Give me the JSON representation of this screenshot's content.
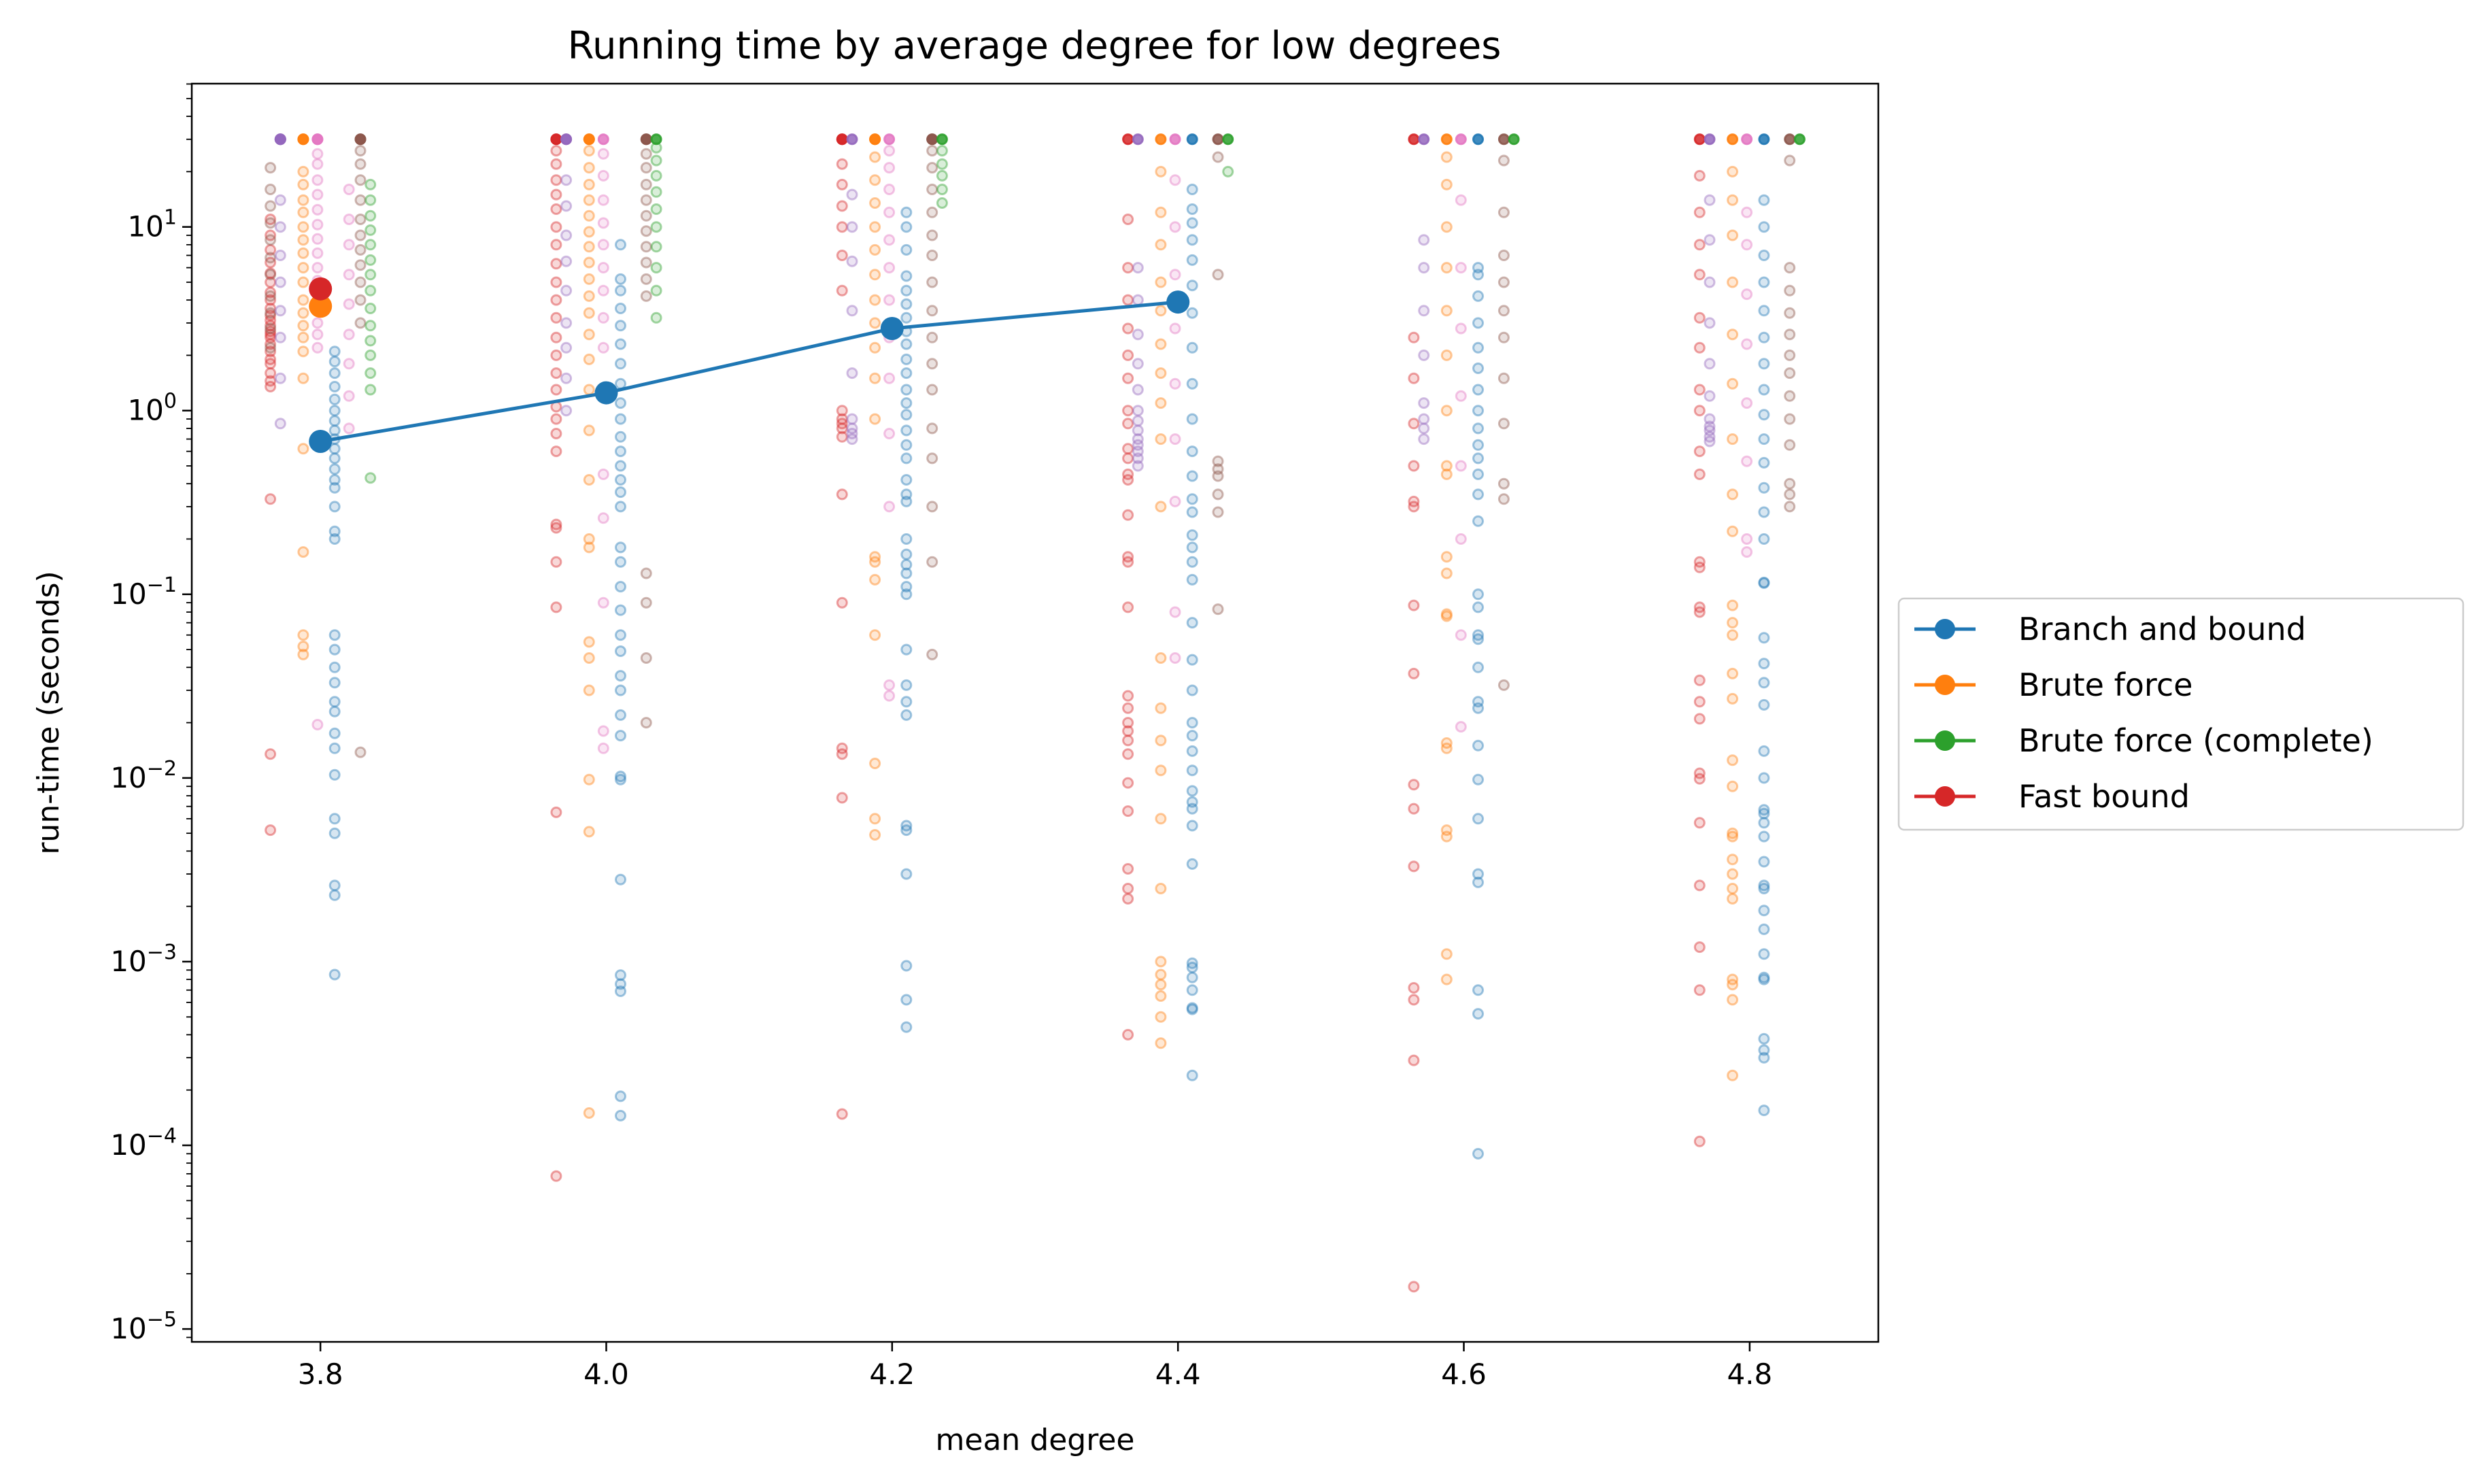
{
  "chart_data": {
    "type": "scatter",
    "title": "Running time by average degree for low degrees",
    "xlabel": "mean degree",
    "ylabel": "run-time (seconds)",
    "xlim": [
      3.71,
      4.89
    ],
    "ylim_exp": [
      -5.07,
      1.78
    ],
    "y_scale": "log",
    "grid": false,
    "legend_placement": "center-right, outside plot",
    "x_ticks": [
      {
        "value": 3.8,
        "label": "3.8"
      },
      {
        "value": 4.0,
        "label": "4.0"
      },
      {
        "value": 4.2,
        "label": "4.2"
      },
      {
        "value": 4.4,
        "label": "4.4"
      },
      {
        "value": 4.6,
        "label": "4.6"
      },
      {
        "value": 4.8,
        "label": "4.8"
      }
    ],
    "y_ticks": [
      {
        "exp": 1,
        "label": "10",
        "sup": "1"
      },
      {
        "exp": 0,
        "label": "10",
        "sup": "0"
      },
      {
        "exp": -1,
        "label": "10",
        "sup": "−1"
      },
      {
        "exp": -2,
        "label": "10",
        "sup": "−2"
      },
      {
        "exp": -3,
        "label": "10",
        "sup": "−3"
      },
      {
        "exp": -4,
        "label": "10",
        "sup": "−4"
      },
      {
        "exp": -5,
        "label": "10",
        "sup": "−5"
      }
    ],
    "series": [
      {
        "name": "Branch and bound",
        "color": "#1f77b4",
        "x": [
          3.8,
          4.0,
          4.2,
          4.4
        ],
        "y": [
          0.68,
          1.25,
          2.8,
          3.9
        ]
      },
      {
        "name": "Brute force",
        "color": "#ff7f0e",
        "x": [
          3.8
        ],
        "y": [
          3.7
        ]
      },
      {
        "name": "Brute force (complete)",
        "color": "#2ca02c",
        "x": [],
        "y": []
      },
      {
        "name": "Fast bound",
        "color": "#d62728",
        "x": [
          3.8
        ],
        "y": [
          4.6
        ]
      }
    ],
    "scatter_groups": [
      {
        "color": "#d62728",
        "x": 3.765,
        "y": [
          0.0052,
          0.0135,
          0.33,
          1.35,
          1.45,
          1.6,
          1.8,
          1.9,
          2.1,
          2.3,
          2.5,
          2.6,
          2.7,
          2.9,
          3.1,
          3.3,
          3.6,
          4.0,
          4.4,
          5.0,
          5.6,
          6.4,
          7.5,
          9.0,
          11.0
        ]
      },
      {
        "color": "#8c564b",
        "x": 3.765,
        "y": [
          2.2,
          2.8,
          3.4,
          4.2,
          5.5,
          6.8,
          8.5,
          10.5,
          13.0,
          16.0,
          21.0
        ]
      },
      {
        "color": "#9467bd",
        "x": 3.772,
        "y": [
          0.85,
          1.5,
          2.5,
          3.5,
          5.0,
          7.0,
          10.0,
          14.0,
          30.0,
          30.0,
          30.0
        ]
      },
      {
        "color": "#ff7f0e",
        "x": 3.788,
        "y": [
          0.047,
          0.052,
          0.06,
          0.17,
          0.62,
          1.5,
          2.1,
          2.5,
          2.9,
          3.4,
          4.0,
          5.0,
          6.0,
          7.2,
          8.5,
          10.0,
          12.0,
          14.0,
          17.0,
          20.0,
          30.0,
          30.0
        ]
      },
      {
        "color": "#e377c2",
        "x": 3.798,
        "y": [
          0.0195,
          2.2,
          2.6,
          3.0,
          3.6,
          4.3,
          5.1,
          6.0,
          7.2,
          8.6,
          10.3,
          12.4,
          15.0,
          18.0,
          22.0,
          25.0,
          30.0,
          30.0
        ]
      },
      {
        "color": "#1f77b4",
        "x": 3.81,
        "y": [
          0.00085,
          0.0023,
          0.0026,
          0.005,
          0.006,
          0.0104,
          0.0145,
          0.0175,
          0.023,
          0.026,
          0.033,
          0.04,
          0.05,
          0.06,
          0.2,
          0.22,
          0.3,
          0.38,
          0.42,
          0.48,
          0.55,
          0.62,
          0.7,
          0.78,
          0.88,
          1.0,
          1.15,
          1.35,
          1.6,
          1.85,
          2.1
        ]
      },
      {
        "color": "#e377c2",
        "x": 3.82,
        "y": [
          0.8,
          1.2,
          1.8,
          2.6,
          3.8,
          5.5,
          8.0,
          11.0,
          16.0
        ]
      },
      {
        "color": "#8c564b",
        "x": 3.828,
        "y": [
          0.0138,
          3.0,
          4.0,
          5.0,
          6.2,
          7.5,
          9.0,
          11.0,
          14.0,
          18.0,
          22.0,
          26.0,
          30.0,
          30.0
        ]
      },
      {
        "color": "#2ca02c",
        "x": 3.835,
        "y": [
          0.43,
          1.3,
          1.6,
          2.0,
          2.4,
          2.9,
          3.6,
          4.5,
          5.5,
          6.6,
          8.0,
          9.6,
          11.5,
          14.0,
          17.0
        ]
      },
      {
        "color": "#d62728",
        "x": 3.965,
        "y": [
          6.8e-05,
          0.0065,
          0.085,
          0.15,
          0.23,
          0.24,
          0.6,
          0.75,
          0.9,
          1.05,
          1.3,
          1.6,
          2.0,
          2.5,
          3.2,
          4.0,
          5.0,
          6.3,
          8.0,
          10.0,
          12.5,
          15.0,
          18.0,
          22.0,
          26.0,
          30.0,
          30.0
        ]
      },
      {
        "color": "#9467bd",
        "x": 3.972,
        "y": [
          1.0,
          1.5,
          2.2,
          3.0,
          4.5,
          6.5,
          9.0,
          13.0,
          18.0,
          30.0,
          30.0
        ]
      },
      {
        "color": "#ff7f0e",
        "x": 3.988,
        "y": [
          0.00015,
          0.0051,
          0.0098,
          0.03,
          0.045,
          0.055,
          0.18,
          0.2,
          0.42,
          0.78,
          1.3,
          1.9,
          2.6,
          3.4,
          4.2,
          5.2,
          6.4,
          7.8,
          9.4,
          11.5,
          14.0,
          17.0,
          21.0,
          26.0,
          30.0,
          30.0
        ]
      },
      {
        "color": "#e377c2",
        "x": 3.998,
        "y": [
          0.0145,
          0.018,
          0.09,
          0.26,
          0.45,
          1.3,
          2.2,
          3.2,
          4.5,
          6.0,
          8.0,
          10.5,
          14.0,
          19.0,
          25.0,
          30.0
        ]
      },
      {
        "color": "#1f77b4",
        "x": 4.01,
        "y": [
          0.000145,
          0.000185,
          0.00069,
          0.000755,
          0.000845,
          0.0028,
          0.0098,
          0.0102,
          0.017,
          0.022,
          0.03,
          0.036,
          0.049,
          0.06,
          0.082,
          0.11,
          0.15,
          0.18,
          0.3,
          0.36,
          0.42,
          0.5,
          0.6,
          0.72,
          0.9,
          1.1,
          1.4,
          1.8,
          2.3,
          2.9,
          3.6,
          4.5,
          5.2,
          8.0
        ]
      },
      {
        "color": "#8c564b",
        "x": 4.028,
        "y": [
          0.02,
          0.045,
          0.09,
          0.13,
          4.2,
          5.2,
          6.4,
          7.8,
          9.5,
          11.5,
          14.0,
          17.0,
          21.0,
          25.0,
          30.0,
          30.0
        ]
      },
      {
        "color": "#2ca02c",
        "x": 4.035,
        "y": [
          3.2,
          4.5,
          6.0,
          7.8,
          10.0,
          12.5,
          15.5,
          19.0,
          23.0,
          27.0,
          30.0
        ]
      },
      {
        "color": "#d62728",
        "x": 4.165,
        "y": [
          0.000148,
          0.0078,
          0.0135,
          0.0145,
          0.09,
          0.35,
          0.72,
          0.8,
          0.85,
          0.9,
          1.0,
          4.5,
          7.0,
          10.0,
          13.0,
          17.0,
          22.0,
          30.0,
          30.0
        ]
      },
      {
        "color": "#9467bd",
        "x": 4.172,
        "y": [
          0.7,
          0.75,
          0.8,
          0.9,
          1.6,
          3.5,
          6.5,
          10.0,
          15.0,
          30.0
        ]
      },
      {
        "color": "#ff7f0e",
        "x": 4.188,
        "y": [
          0.0049,
          0.006,
          0.012,
          0.06,
          0.12,
          0.15,
          0.16,
          0.9,
          1.5,
          2.2,
          3.0,
          4.0,
          5.5,
          7.5,
          10.0,
          13.5,
          18.0,
          24.0,
          30.0,
          30.0
        ]
      },
      {
        "color": "#e377c2",
        "x": 4.198,
        "y": [
          0.028,
          0.032,
          0.3,
          0.75,
          1.5,
          2.5,
          4.0,
          6.0,
          8.5,
          12.0,
          16.0,
          21.0,
          26.0,
          30.0
        ]
      },
      {
        "color": "#1f77b4",
        "x": 4.21,
        "y": [
          0.00044,
          0.00062,
          0.00095,
          0.003,
          0.0052,
          0.0055,
          0.022,
          0.026,
          0.032,
          0.05,
          0.1,
          0.11,
          0.13,
          0.145,
          0.165,
          0.2,
          0.32,
          0.35,
          0.42,
          0.55,
          0.65,
          0.78,
          0.95,
          1.1,
          1.3,
          1.6,
          1.9,
          2.3,
          2.7,
          3.2,
          3.8,
          4.5,
          5.4,
          7.5,
          10.0,
          12.0
        ]
      },
      {
        "color": "#8c564b",
        "x": 4.228,
        "y": [
          0.047,
          0.15,
          0.3,
          0.55,
          0.8,
          1.3,
          1.8,
          2.5,
          3.5,
          5.0,
          7.0,
          9.0,
          12.0,
          16.0,
          21.0,
          26.0,
          30.0,
          30.0
        ]
      },
      {
        "color": "#2ca02c",
        "x": 4.235,
        "y": [
          13.5,
          16.0,
          19.0,
          22.0,
          26.0,
          30.0
        ]
      },
      {
        "color": "#d62728",
        "x": 4.365,
        "y": [
          0.0004,
          0.0022,
          0.0025,
          0.0032,
          0.0066,
          0.0094,
          0.0135,
          0.016,
          0.018,
          0.02,
          0.024,
          0.028,
          0.085,
          0.15,
          0.16,
          0.27,
          0.42,
          0.45,
          0.55,
          0.62,
          0.85,
          1.0,
          1.5,
          2.0,
          2.8,
          4.0,
          6.0,
          11.0,
          30.0
        ]
      },
      {
        "color": "#9467bd",
        "x": 4.372,
        "y": [
          0.5,
          0.55,
          0.6,
          0.65,
          0.7,
          0.78,
          0.88,
          1.0,
          1.3,
          1.8,
          2.6,
          4.0,
          6.0,
          30.0
        ]
      },
      {
        "color": "#ff7f0e",
        "x": 4.388,
        "y": [
          0.00036,
          0.0005,
          0.00065,
          0.00075,
          0.00085,
          0.001,
          0.0025,
          0.006,
          0.011,
          0.016,
          0.024,
          0.045,
          0.3,
          0.7,
          1.1,
          1.6,
          2.3,
          3.5,
          5.0,
          8.0,
          12.0,
          20.0,
          30.0
        ]
      },
      {
        "color": "#e377c2",
        "x": 4.398,
        "y": [
          0.045,
          0.08,
          0.32,
          0.7,
          1.4,
          2.8,
          5.5,
          10.0,
          18.0,
          30.0
        ]
      },
      {
        "color": "#1f77b4",
        "x": 4.41,
        "y": [
          0.00024,
          0.00055,
          0.00056,
          0.0007,
          0.00082,
          0.00093,
          0.00098,
          0.0034,
          0.0055,
          0.0068,
          0.0074,
          0.0085,
          0.011,
          0.014,
          0.017,
          0.02,
          0.03,
          0.044,
          0.07,
          0.12,
          0.15,
          0.18,
          0.21,
          0.28,
          0.33,
          0.44,
          0.6,
          0.9,
          1.4,
          2.2,
          3.4,
          4.8,
          6.6,
          8.5,
          10.5,
          12.5,
          16.0,
          30.0
        ]
      },
      {
        "color": "#8c564b",
        "x": 4.428,
        "y": [
          0.083,
          0.28,
          0.35,
          0.44,
          0.48,
          0.53,
          5.5,
          24.0,
          30.0
        ]
      },
      {
        "color": "#2ca02c",
        "x": 4.435,
        "y": [
          20.0,
          30.0
        ]
      },
      {
        "color": "#d62728",
        "x": 4.565,
        "y": [
          1.7e-05,
          0.00029,
          0.00062,
          0.00072,
          0.0033,
          0.0068,
          0.0092,
          0.037,
          0.087,
          0.3,
          0.32,
          0.5,
          0.85,
          1.5,
          2.5,
          30.0
        ]
      },
      {
        "color": "#9467bd",
        "x": 4.572,
        "y": [
          0.7,
          0.8,
          0.9,
          1.1,
          2.0,
          3.5,
          6.0,
          8.5,
          30.0
        ]
      },
      {
        "color": "#ff7f0e",
        "x": 4.588,
        "y": [
          0.0008,
          0.0011,
          0.0048,
          0.0052,
          0.0145,
          0.0155,
          0.076,
          0.078,
          0.13,
          0.16,
          0.45,
          0.5,
          1.0,
          2.0,
          3.5,
          6.0,
          10.0,
          17.0,
          24.0,
          30.0
        ]
      },
      {
        "color": "#e377c2",
        "x": 4.598,
        "y": [
          0.019,
          0.06,
          0.2,
          0.5,
          1.2,
          2.8,
          6.0,
          14.0,
          30.0
        ]
      },
      {
        "color": "#1f77b4",
        "x": 4.61,
        "y": [
          9e-05,
          0.00052,
          0.0007,
          0.0027,
          0.003,
          0.006,
          0.0098,
          0.015,
          0.024,
          0.026,
          0.04,
          0.057,
          0.06,
          0.085,
          0.1,
          0.25,
          0.35,
          0.45,
          0.55,
          0.65,
          0.8,
          1.0,
          1.3,
          1.7,
          2.2,
          3.0,
          4.2,
          5.5,
          6.0,
          30.0
        ]
      },
      {
        "color": "#8c564b",
        "x": 4.628,
        "y": [
          0.032,
          0.33,
          0.4,
          0.85,
          1.5,
          2.5,
          3.5,
          5.0,
          7.0,
          12.0,
          23.0,
          30.0
        ]
      },
      {
        "color": "#2ca02c",
        "x": 4.635,
        "y": [
          30.0
        ]
      },
      {
        "color": "#d62728",
        "x": 4.765,
        "y": [
          0.000105,
          0.0007,
          0.0012,
          0.0026,
          0.0057,
          0.0099,
          0.0106,
          0.021,
          0.026,
          0.034,
          0.08,
          0.085,
          0.14,
          0.15,
          0.45,
          0.6,
          1.0,
          1.3,
          2.2,
          3.2,
          5.5,
          8.0,
          12.0,
          19.0,
          30.0
        ]
      },
      {
        "color": "#9467bd",
        "x": 4.772,
        "y": [
          0.68,
          0.72,
          0.78,
          0.82,
          0.9,
          1.2,
          1.8,
          3.0,
          5.0,
          8.5,
          14.0,
          30.0
        ]
      },
      {
        "color": "#ff7f0e",
        "x": 4.788,
        "y": [
          0.00024,
          0.00062,
          0.00075,
          0.0008,
          0.0022,
          0.0025,
          0.003,
          0.0036,
          0.0048,
          0.005,
          0.009,
          0.0125,
          0.027,
          0.037,
          0.06,
          0.07,
          0.087,
          0.22,
          0.35,
          0.7,
          1.4,
          2.6,
          5.0,
          9.0,
          14.0,
          20.0,
          30.0
        ]
      },
      {
        "color": "#e377c2",
        "x": 4.798,
        "y": [
          0.17,
          0.2,
          0.53,
          1.1,
          2.3,
          4.3,
          8.0,
          12.0,
          30.0
        ]
      },
      {
        "color": "#1f77b4",
        "x": 4.81,
        "y": [
          0.000155,
          0.0003,
          0.00033,
          0.00038,
          0.0008,
          0.00082,
          0.0011,
          0.0015,
          0.0019,
          0.0025,
          0.0026,
          0.0035,
          0.0048,
          0.0057,
          0.0064,
          0.0067,
          0.01,
          0.014,
          0.025,
          0.033,
          0.042,
          0.058,
          0.115,
          0.116,
          0.2,
          0.28,
          0.38,
          0.52,
          0.7,
          0.95,
          1.3,
          1.8,
          2.5,
          3.5,
          5.0,
          7.0,
          10.0,
          14.0,
          30.0
        ]
      },
      {
        "color": "#8c564b",
        "x": 4.828,
        "y": [
          0.3,
          0.35,
          0.4,
          0.65,
          0.9,
          1.2,
          1.6,
          2.0,
          2.6,
          3.4,
          4.5,
          6.0,
          23.0,
          30.0
        ]
      },
      {
        "color": "#2ca02c",
        "x": 4.835,
        "y": [
          30.0
        ]
      }
    ]
  }
}
